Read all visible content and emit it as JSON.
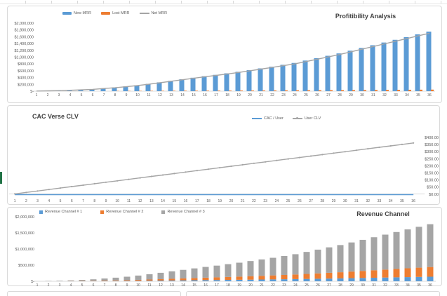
{
  "app": {
    "background": "#ffffff",
    "panel_border": "#d9d9d9",
    "axis_line_color": "#d9d9d9",
    "tick_text_color": "#595959",
    "title_text_color": "#404040",
    "selection_mark_color": "#217346"
  },
  "chart_data": [
    {
      "id": "profitability",
      "type": "bar",
      "title": "Profitibility Analysis",
      "legend_position": "top",
      "grid": false,
      "yaxis_side": "left",
      "ylim": [
        0,
        2000000
      ],
      "ytick_labels": [
        "$2,000,000",
        "$1,800,000",
        "$1,600,000",
        "$1,400,000",
        "$1,200,000",
        "$1,000,000",
        "$800,000",
        "$600,000",
        "$400,000",
        "$200,000",
        "$-"
      ],
      "x": [
        1,
        2,
        3,
        4,
        5,
        6,
        7,
        8,
        9,
        10,
        11,
        12,
        13,
        14,
        15,
        16,
        17,
        18,
        19,
        20,
        21,
        22,
        23,
        24,
        25,
        26,
        27,
        28,
        29,
        30,
        31,
        32,
        33,
        34,
        35,
        36
      ],
      "series": [
        {
          "name": "New MRR",
          "type": "bar",
          "color": "#5B9BD5",
          "values": [
            5000,
            12000,
            20000,
            30000,
            45000,
            60000,
            85000,
            110000,
            140000,
            175000,
            215000,
            260000,
            305000,
            350000,
            395000,
            440000,
            480000,
            525000,
            570000,
            620000,
            670000,
            720000,
            775000,
            830000,
            900000,
            970000,
            1040000,
            1110000,
            1190000,
            1270000,
            1350000,
            1430000,
            1510000,
            1590000,
            1670000,
            1750000
          ]
        },
        {
          "name": "Lost MRR",
          "type": "bar",
          "color": "#ED7D31",
          "values": [
            1000,
            2000,
            3000,
            4000,
            5000,
            6000,
            7000,
            8000,
            9000,
            10000,
            11000,
            12000,
            13000,
            14000,
            15000,
            16000,
            17000,
            18000,
            19000,
            20000,
            21000,
            22000,
            25000,
            27000,
            29000,
            30000,
            31000,
            32000,
            33000,
            34000,
            36000,
            38000,
            40000,
            42000,
            44000,
            46000
          ]
        },
        {
          "name": "Net MRR",
          "type": "line",
          "color": "#A5A5A5",
          "values": [
            4000,
            10000,
            17000,
            26000,
            40000,
            54000,
            78000,
            102000,
            131000,
            165000,
            204000,
            248000,
            292000,
            336000,
            380000,
            424000,
            463000,
            507000,
            551000,
            600000,
            649000,
            698000,
            750000,
            803000,
            871000,
            940000,
            1009000,
            1078000,
            1157000,
            1236000,
            1314000,
            1392000,
            1470000,
            1548000,
            1626000,
            1704000
          ]
        }
      ]
    },
    {
      "id": "cac-verse-clv",
      "type": "line",
      "title": "CAC Verse CLV",
      "legend_position": "top",
      "grid": false,
      "yaxis_side": "right",
      "ylim": [
        0,
        400
      ],
      "ytick_labels": [
        "$400.00",
        "$350.00",
        "$300.00",
        "$250.00",
        "$200.00",
        "$150.00",
        "$100.00",
        "$50.00",
        "$0.00"
      ],
      "x": [
        1,
        2,
        3,
        4,
        5,
        6,
        7,
        8,
        9,
        10,
        11,
        12,
        13,
        14,
        15,
        16,
        17,
        18,
        19,
        20,
        21,
        22,
        23,
        24,
        25,
        26,
        27,
        28,
        29,
        30,
        31,
        32,
        33,
        34,
        35,
        36
      ],
      "series": [
        {
          "name": "CAC / User",
          "type": "line",
          "color": "#5B9BD5",
          "values": [
            5,
            5,
            5,
            5,
            5,
            5,
            5,
            5,
            5,
            5,
            5,
            5,
            5,
            5,
            5,
            5,
            5,
            5,
            5,
            5,
            5,
            5,
            5,
            5,
            5,
            5,
            5,
            5,
            5,
            5,
            5,
            5,
            5,
            5,
            5,
            5
          ]
        },
        {
          "name": "User CLV",
          "type": "line-marker",
          "color": "#A5A5A5",
          "values": [
            10,
            20,
            30,
            40,
            50,
            60,
            70,
            80,
            90,
            100,
            110,
            120,
            130,
            140,
            150,
            160,
            170,
            180,
            190,
            200,
            210,
            220,
            230,
            240,
            250,
            260,
            270,
            280,
            290,
            300,
            310,
            320,
            330,
            340,
            350,
            360
          ]
        }
      ]
    },
    {
      "id": "revenue-channel",
      "type": "stacked-bar",
      "title": "Revenue Channel",
      "legend_position": "top",
      "grid": false,
      "yaxis_side": "left",
      "ylim": [
        0,
        2000000
      ],
      "ytick_labels": [
        "$2,000,000",
        "$1,500,000",
        "$1,000,000",
        "$500,000",
        "$-"
      ],
      "x": [
        1,
        2,
        3,
        4,
        5,
        6,
        7,
        8,
        9,
        10,
        11,
        12,
        13,
        14,
        15,
        16,
        17,
        18,
        19,
        20,
        21,
        22,
        23,
        24,
        25,
        26,
        27,
        28,
        29,
        30,
        31,
        32,
        33,
        34,
        35,
        36
      ],
      "series": [
        {
          "name": "Revenue Channel # 1",
          "type": "bar",
          "color": "#5B9BD5",
          "values": [
            400,
            960,
            1600,
            2400,
            3600,
            4800,
            6800,
            8800,
            11200,
            14000,
            17200,
            20800,
            24400,
            28000,
            31600,
            35200,
            38400,
            42000,
            45600,
            49600,
            53600,
            57600,
            62000,
            66400,
            72000,
            77600,
            83200,
            88800,
            95200,
            101600,
            108000,
            114400,
            120800,
            127200,
            133600,
            140000
          ]
        },
        {
          "name": "Revenue Channel # 2",
          "type": "bar",
          "color": "#ED7D31",
          "values": [
            850,
            2040,
            3400,
            5100,
            7650,
            10200,
            14450,
            18700,
            23800,
            29750,
            36550,
            44200,
            51850,
            59500,
            67150,
            74800,
            81600,
            89250,
            96900,
            105400,
            113900,
            122400,
            131750,
            141100,
            153000,
            164900,
            176800,
            188700,
            202300,
            215900,
            229500,
            243100,
            256700,
            270300,
            283900,
            297500
          ]
        },
        {
          "name": "Revenue Channel # 3",
          "type": "bar",
          "color": "#A5A5A5",
          "values": [
            3750,
            9000,
            15000,
            22500,
            33750,
            45000,
            63750,
            82500,
            105000,
            131250,
            161250,
            195000,
            228750,
            262500,
            296250,
            330000,
            360000,
            393750,
            427500,
            465000,
            502500,
            540000,
            581250,
            622500,
            675000,
            727500,
            780000,
            832500,
            892500,
            952500,
            1012500,
            1072500,
            1132500,
            1192500,
            1252500,
            1312500
          ]
        }
      ]
    }
  ]
}
